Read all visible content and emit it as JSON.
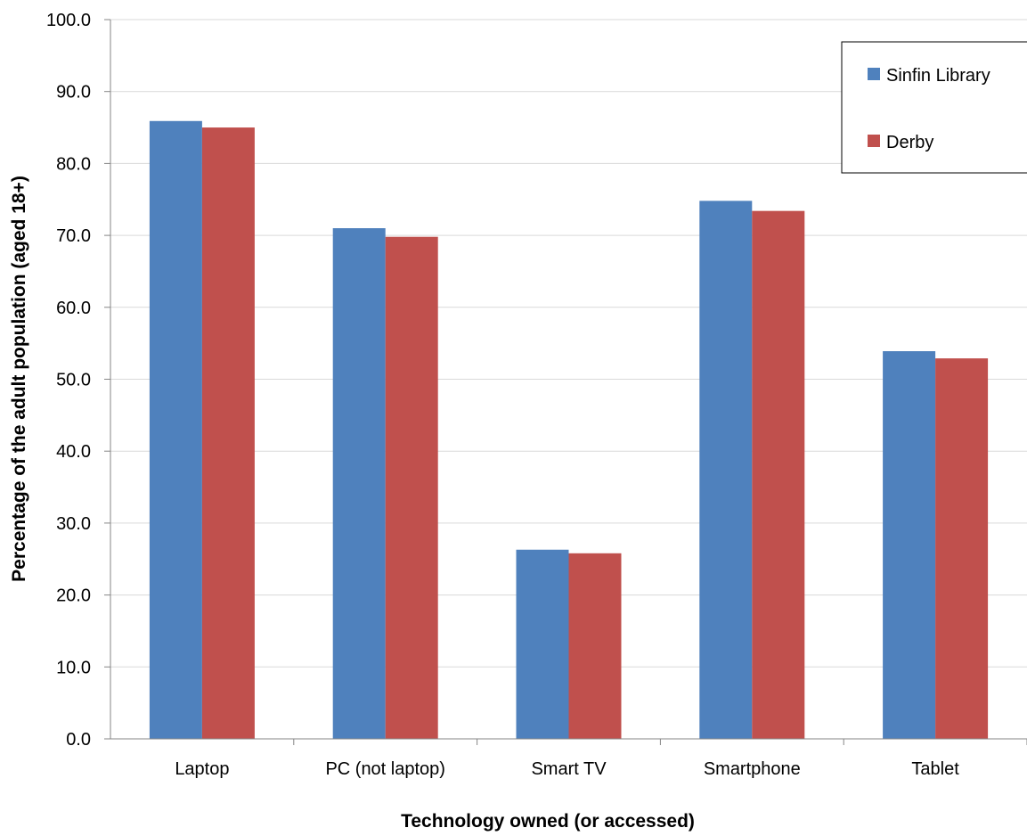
{
  "chart_data": {
    "type": "bar",
    "title": "",
    "xlabel": "Technology owned (or accessed)",
    "ylabel": "Percentage of the  adult population (aged 18+)",
    "categories": [
      "Laptop",
      "PC (not laptop)",
      "Smart TV",
      "Smartphone",
      "Tablet"
    ],
    "series": [
      {
        "name": "Sinfin Library",
        "color": "#4F81BD",
        "values": [
          85.9,
          71.0,
          26.3,
          74.8,
          53.9
        ]
      },
      {
        "name": "Derby",
        "color": "#C0504D",
        "values": [
          85.0,
          69.8,
          25.8,
          73.4,
          52.9
        ]
      }
    ],
    "ylim": [
      0,
      100
    ],
    "y_ticks": [
      "0.0",
      "10.0",
      "20.0",
      "30.0",
      "40.0",
      "50.0",
      "60.0",
      "70.0",
      "80.0",
      "90.0",
      "100.0"
    ],
    "grid": true,
    "legend_position": "top-right"
  }
}
